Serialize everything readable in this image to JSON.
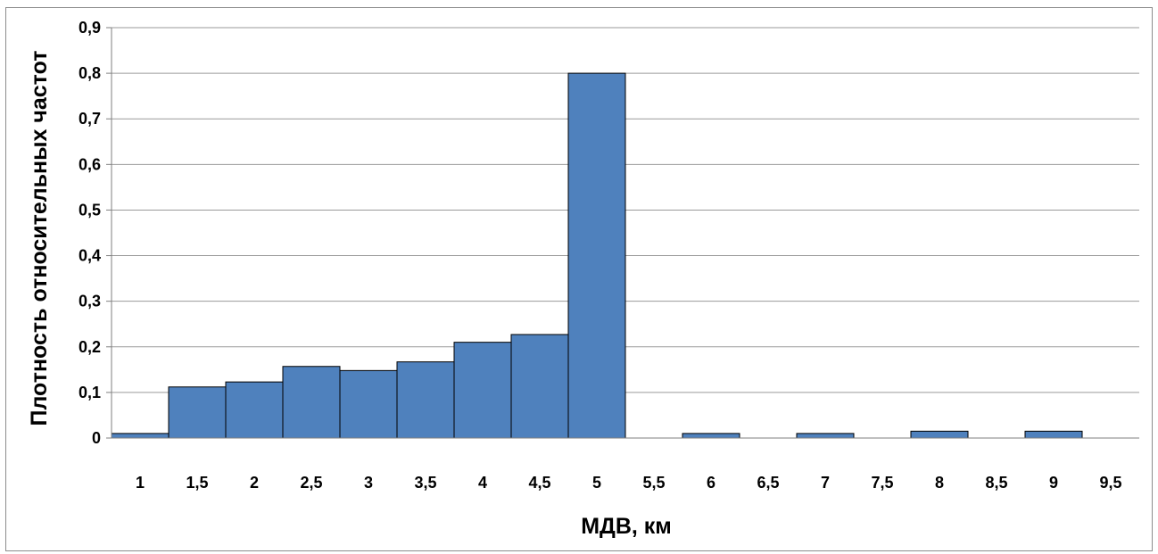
{
  "chart_data": {
    "type": "bar",
    "title": "",
    "xlabel": "МДВ, км",
    "ylabel": "Плотность относительных частот",
    "categories": [
      "1",
      "1,5",
      "2",
      "2,5",
      "3",
      "3,5",
      "4",
      "4,5",
      "5",
      "5,5",
      "6",
      "6,5",
      "7",
      "7,5",
      "8",
      "8,5",
      "9",
      "9,5"
    ],
    "values": [
      0.01,
      0.112,
      0.123,
      0.157,
      0.148,
      0.167,
      0.21,
      0.227,
      0.8,
      0,
      0.01,
      0,
      0.01,
      0,
      0.015,
      0,
      0.015,
      0
    ],
    "ylim": [
      0,
      0.9
    ],
    "yticks": [
      "0",
      "0,1",
      "0,2",
      "0,3",
      "0,4",
      "0,5",
      "0,6",
      "0,7",
      "0,8",
      "0,9"
    ],
    "grid": true,
    "legend": "none",
    "bar_color": "#4f81bd",
    "bar_edge_color": "#000000",
    "grid_color": "#9a9a9a"
  }
}
